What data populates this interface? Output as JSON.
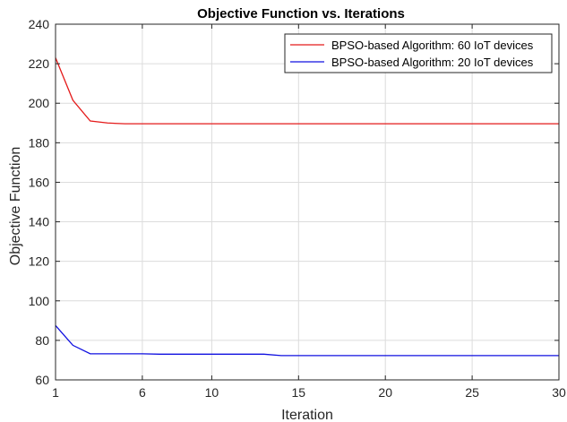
{
  "chart_data": {
    "type": "line",
    "title": "Objective Function vs. Iterations",
    "xlabel": "Iteration",
    "ylabel": "Objective Function",
    "xlim": [
      1,
      30
    ],
    "ylim": [
      60,
      240
    ],
    "xticks": [
      1,
      6,
      10,
      15,
      20,
      25,
      30
    ],
    "yticks": [
      60,
      80,
      100,
      120,
      140,
      160,
      180,
      200,
      220,
      240
    ],
    "grid": true,
    "legend_position": "top-right",
    "series": [
      {
        "name": "BPSO-based Algorithm: 60 IoT devices",
        "color": "#e41a1a",
        "x": [
          1,
          2,
          3,
          4,
          5,
          6,
          7,
          8,
          9,
          10,
          11,
          12,
          13,
          14,
          15,
          16,
          17,
          18,
          19,
          20,
          21,
          22,
          23,
          24,
          25,
          26,
          27,
          28,
          29,
          30
        ],
        "y": [
          223,
          201.5,
          191,
          190,
          189.6,
          189.6,
          189.6,
          189.6,
          189.6,
          189.6,
          189.6,
          189.6,
          189.6,
          189.6,
          189.6,
          189.6,
          189.6,
          189.6,
          189.6,
          189.6,
          189.6,
          189.6,
          189.6,
          189.6,
          189.6,
          189.6,
          189.6,
          189.6,
          189.6,
          189.6
        ]
      },
      {
        "name": "BPSO-based Algorithm: 20 IoT devices",
        "color": "#1010e0",
        "x": [
          1,
          2,
          3,
          4,
          5,
          6,
          7,
          8,
          9,
          10,
          11,
          12,
          13,
          14,
          15,
          16,
          17,
          18,
          19,
          20,
          21,
          22,
          23,
          24,
          25,
          26,
          27,
          28,
          29,
          30
        ],
        "y": [
          87.5,
          77.5,
          73.2,
          73.2,
          73.2,
          73.2,
          73,
          73,
          73,
          73,
          73,
          73,
          73,
          72.3,
          72.3,
          72.3,
          72.3,
          72.3,
          72.3,
          72.3,
          72.3,
          72.3,
          72.3,
          72.3,
          72.3,
          72.3,
          72.3,
          72.3,
          72.3,
          72.3
        ]
      }
    ]
  }
}
